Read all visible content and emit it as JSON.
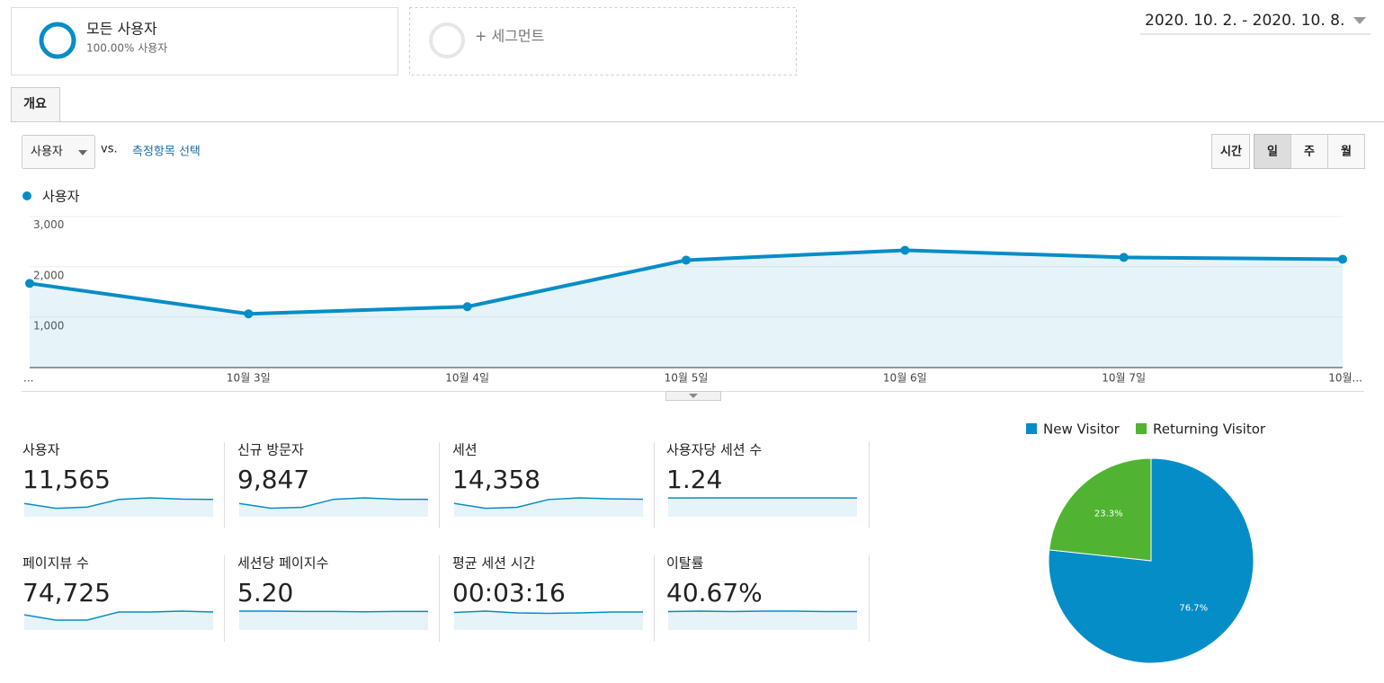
{
  "segments": [
    {
      "title": "모든 사용자",
      "subtitle": "100.00% 사용자"
    },
    {
      "title": "+ 세그먼트"
    }
  ],
  "date_range": "2020. 10. 2. - 2020. 10. 8.",
  "tabs": [
    "개요"
  ],
  "metric_select": "사용자",
  "vs": "vs.",
  "metric_link": "측정항목 선택",
  "granularity": [
    "시간",
    "일",
    "주",
    "월"
  ],
  "sparkline_color": "#058dc7",
  "metrics": [
    {
      "label": "사용자",
      "value": "11,565",
      "sparkline": [
        1650,
        1050,
        1200,
        2150,
        2350,
        2200,
        2150
      ]
    },
    {
      "label": "신규 방문자",
      "value": "9,847",
      "sparkline": [
        1400,
        900,
        1000,
        1850,
        2000,
        1850,
        1850
      ]
    },
    {
      "label": "세션",
      "value": "14,358",
      "sparkline": [
        2050,
        1300,
        1450,
        2650,
        2900,
        2750,
        2700
      ]
    },
    {
      "label": "사용자당 세션 수",
      "value": "1.24",
      "sparkline": [
        1.23,
        1.24,
        1.24,
        1.24,
        1.24,
        1.24,
        1.23
      ]
    },
    {
      "label": "페이지뷰 수",
      "value": "74,725",
      "sparkline": [
        10500,
        6900,
        6900,
        12500,
        12500,
        13100,
        12500
      ]
    },
    {
      "label": "세션당 페이지수",
      "value": "5.20",
      "sparkline": [
        5.3,
        5.3,
        5.2,
        5.2,
        5.1,
        5.2,
        5.2
      ]
    },
    {
      "label": "평균 세션 시간",
      "value": "00:03:16",
      "sparkline": [
        190,
        205,
        185,
        180,
        185,
        195,
        195
      ]
    },
    {
      "label": "이탈률",
      "value": "40.67%",
      "sparkline": [
        40,
        41,
        40,
        41,
        41,
        40,
        40
      ]
    }
  ],
  "chart_data": [
    {
      "type": "line",
      "categories": [
        "...",
        "10월 3일",
        "10월 4일",
        "10월 5일",
        "10월 6일",
        "10월 7일",
        "10월..."
      ],
      "series": [
        {
          "name": "사용자",
          "color": "#058dc7",
          "values": [
            1670,
            1066,
            1208,
            2131,
            2327,
            2185,
            2149
          ]
        }
      ],
      "ylim": [
        0,
        3000
      ],
      "yticks": [
        {
          "value": 1000,
          "label": "1,000"
        },
        {
          "value": 2000,
          "label": "2,000"
        },
        {
          "value": 3000,
          "label": "3,000"
        }
      ],
      "grid": true
    },
    {
      "type": "pie",
      "categories": [
        "New Visitor",
        "Returning Visitor"
      ],
      "values": [
        76.7,
        23.3
      ],
      "value_labels": [
        "76.7%",
        "23.3%"
      ],
      "colors": [
        "#058dc7",
        "#50b432"
      ]
    }
  ]
}
